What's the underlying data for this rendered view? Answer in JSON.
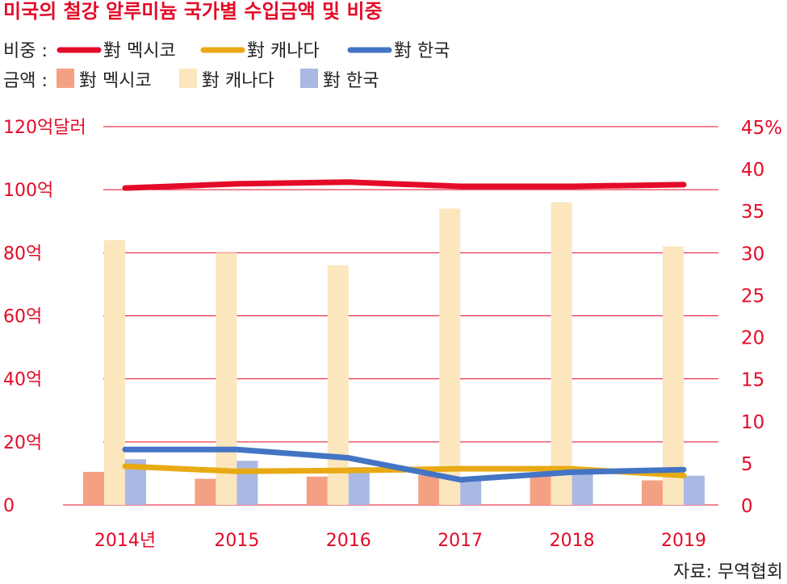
{
  "chart_data": {
    "type": "bar",
    "title": "미국의 철강 알루미늄 국가별 수입금액 및 비중",
    "categories": [
      "2014년",
      "2015",
      "2016",
      "2017",
      "2018",
      "2019"
    ],
    "legend": {
      "share_label": "비중 :",
      "amount_label": "금액 :",
      "position": "top-left"
    },
    "amount_axis": {
      "ylim": [
        0,
        120
      ],
      "ticks": [
        {
          "value": 0,
          "label": "0"
        },
        {
          "value": 20,
          "label": "20억"
        },
        {
          "value": 40,
          "label": "40억"
        },
        {
          "value": 60,
          "label": "60억"
        },
        {
          "value": 80,
          "label": "80억"
        },
        {
          "value": 100,
          "label": "100억"
        },
        {
          "value": 120,
          "label": "120억달러"
        }
      ]
    },
    "share_axis": {
      "ylim": [
        0,
        45
      ],
      "ticks": [
        {
          "value": 0,
          "label": "0"
        },
        {
          "value": 5,
          "label": "5"
        },
        {
          "value": 10,
          "label": "10"
        },
        {
          "value": 15,
          "label": "15"
        },
        {
          "value": 20,
          "label": "20"
        },
        {
          "value": 25,
          "label": "25"
        },
        {
          "value": 30,
          "label": "30"
        },
        {
          "value": 35,
          "label": "35"
        },
        {
          "value": 40,
          "label": "40"
        },
        {
          "value": 45,
          "label": "45%"
        }
      ]
    },
    "bar_series": [
      {
        "name": "對 멕시코",
        "color": "#f4a183",
        "values": [
          10.5,
          8.3,
          9.0,
          9.5,
          9.5,
          7.8
        ]
      },
      {
        "name": "對 캐나다",
        "color": "#fbe6bd",
        "values": [
          84,
          80,
          76,
          94,
          96,
          82
        ]
      },
      {
        "name": "對 한국",
        "color": "#aab9e3",
        "values": [
          14.5,
          14.0,
          12.0,
          8.5,
          10.5,
          9.3
        ]
      }
    ],
    "line_series": [
      {
        "name": "對 멕시코",
        "color": "#e30b27",
        "values": [
          37.7,
          38.2,
          38.4,
          37.9,
          37.9,
          38.1
        ]
      },
      {
        "name": "對 캐나다",
        "color": "#e8aa14",
        "values": [
          4.6,
          4.0,
          4.1,
          4.3,
          4.3,
          3.5
        ]
      },
      {
        "name": "對 한국",
        "color": "#4474c4",
        "values": [
          6.6,
          6.6,
          5.6,
          3.0,
          3.9,
          4.2
        ]
      }
    ],
    "grid": "horizontal",
    "source": "자료: 무역협회"
  }
}
